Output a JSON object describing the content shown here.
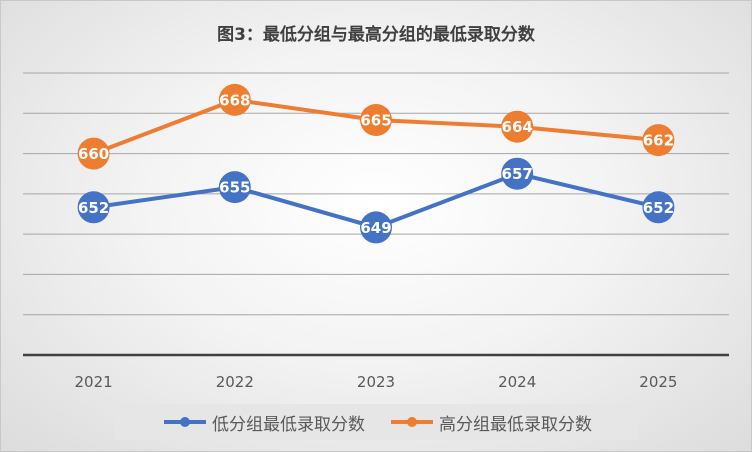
{
  "chart_data": {
    "type": "line",
    "title": "图3：最低分组与最高分组的最低录取分数",
    "categories": [
      "2021",
      "2022",
      "2023",
      "2024",
      "2025"
    ],
    "series": [
      {
        "name": "低分组最低录取分数",
        "values": [
          652,
          655,
          649,
          657,
          652
        ],
        "color": "#4472C4"
      },
      {
        "name": "高分组最低录取分数",
        "values": [
          660,
          668,
          665,
          664,
          662
        ],
        "color": "#ED7D31"
      }
    ],
    "ylim": [
      630,
      672
    ],
    "grid": true,
    "legend_position": "bottom",
    "data_labels": true
  }
}
